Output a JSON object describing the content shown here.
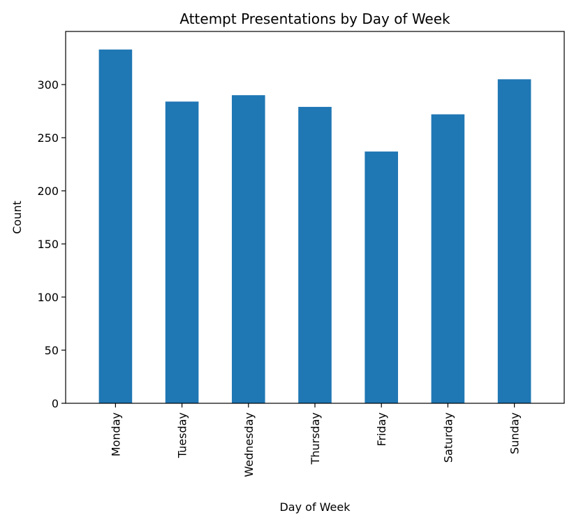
{
  "chart_data": {
    "type": "bar",
    "title": "Attempt Presentations by Day of Week",
    "xlabel": "Day of Week",
    "ylabel": "Count",
    "categories": [
      "Monday",
      "Tuesday",
      "Wednesday",
      "Thursday",
      "Friday",
      "Saturday",
      "Sunday"
    ],
    "values": [
      333,
      284,
      290,
      279,
      237,
      272,
      305
    ],
    "ylim": [
      0,
      350
    ],
    "yticks": [
      0,
      50,
      100,
      150,
      200,
      250,
      300
    ],
    "grid": false,
    "legend": "none",
    "bar_color": "#1f77b4"
  }
}
